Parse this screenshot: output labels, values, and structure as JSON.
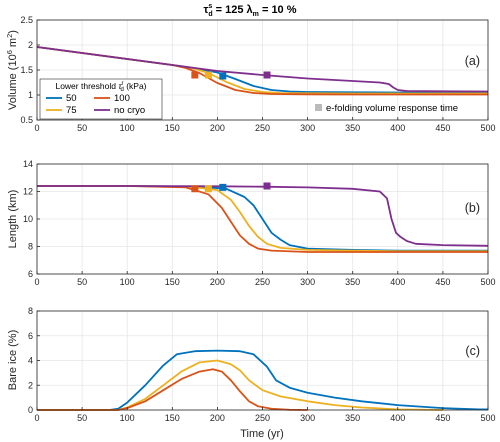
{
  "figure": {
    "title_main": "τ",
    "title_sub": "d",
    "title_sup": "s",
    "title_rest": " = 125  ",
    "title_lambda": "λ",
    "title_lambda_sub": "m",
    "title_lambda_rest": " = 10 %"
  },
  "legend": {
    "title_pre": "Lower threshold ",
    "title_tau": "τ",
    "title_tau_sup": "r",
    "title_tau_sub": "d",
    "title_post": " (kPa)",
    "items": [
      "50",
      "75",
      "100",
      "no cryo"
    ],
    "efold_label": "e-folding volume response time"
  },
  "colors": {
    "s50": "#0072bd",
    "s75": "#edb120",
    "s100": "#d95319",
    "nocryo": "#7e2f8e",
    "efold_marker": "#bbbbbb"
  },
  "chart_data": [
    {
      "type": "line",
      "panel_label": "(a)",
      "ylabel_pre": "Volume (10",
      "ylabel_sup1": "6",
      "ylabel_mid": " m",
      "ylabel_sup2": "2",
      "ylabel_post": ")",
      "xlim": [
        0,
        500
      ],
      "ylim": [
        0.5,
        2.5
      ],
      "yticks": [
        "0.5",
        "1",
        "1.5",
        "2",
        "2.5"
      ],
      "ytick_values": [
        0.5,
        1,
        1.5,
        2,
        2.5
      ],
      "xticks": [
        "0",
        "50",
        "100",
        "150",
        "200",
        "250",
        "300",
        "350",
        "400",
        "450",
        "500"
      ],
      "xtick_values": [
        0,
        50,
        100,
        150,
        200,
        250,
        300,
        350,
        400,
        450,
        500
      ],
      "series": [
        {
          "key": "s50",
          "x": [
            0,
            50,
            100,
            150,
            180,
            200,
            220,
            240,
            260,
            280,
            300,
            350,
            400,
            450,
            500
          ],
          "y": [
            1.96,
            1.84,
            1.72,
            1.6,
            1.52,
            1.45,
            1.32,
            1.18,
            1.1,
            1.07,
            1.06,
            1.055,
            1.05,
            1.05,
            1.05
          ]
        },
        {
          "key": "s75",
          "x": [
            0,
            50,
            100,
            150,
            170,
            190,
            210,
            230,
            250,
            270,
            300,
            350,
            400,
            450,
            500
          ],
          "y": [
            1.96,
            1.84,
            1.72,
            1.6,
            1.55,
            1.44,
            1.26,
            1.12,
            1.06,
            1.04,
            1.035,
            1.03,
            1.03,
            1.03,
            1.03
          ]
        },
        {
          "key": "s100",
          "x": [
            0,
            50,
            100,
            150,
            165,
            180,
            200,
            220,
            240,
            260,
            300,
            350,
            400,
            450,
            500
          ],
          "y": [
            1.96,
            1.84,
            1.72,
            1.6,
            1.54,
            1.44,
            1.24,
            1.1,
            1.04,
            1.02,
            1.015,
            1.01,
            1.01,
            1.01,
            1.01
          ]
        },
        {
          "key": "nocryo",
          "x": [
            0,
            50,
            100,
            150,
            200,
            250,
            300,
            350,
            380,
            390,
            395,
            400,
            410,
            450,
            500
          ],
          "y": [
            1.96,
            1.84,
            1.72,
            1.6,
            1.48,
            1.4,
            1.33,
            1.28,
            1.25,
            1.22,
            1.15,
            1.1,
            1.08,
            1.075,
            1.07
          ]
        }
      ],
      "markers": [
        {
          "key": "s100",
          "x": 175,
          "y": 1.4
        },
        {
          "key": "s75",
          "x": 190,
          "y": 1.4
        },
        {
          "key": "s50",
          "x": 206,
          "y": 1.38
        },
        {
          "key": "nocryo",
          "x": 255,
          "y": 1.4
        }
      ]
    },
    {
      "type": "line",
      "panel_label": "(b)",
      "ylabel": "Length (km)",
      "xlim": [
        0,
        500
      ],
      "ylim": [
        6,
        14
      ],
      "yticks": [
        "6",
        "8",
        "10",
        "12",
        "14"
      ],
      "ytick_values": [
        6,
        8,
        10,
        12,
        14
      ],
      "xticks": [
        "0",
        "50",
        "100",
        "150",
        "200",
        "250",
        "300",
        "350",
        "400",
        "450",
        "500"
      ],
      "xtick_values": [
        0,
        50,
        100,
        150,
        200,
        250,
        300,
        350,
        400,
        450,
        500
      ],
      "series": [
        {
          "key": "s50",
          "x": [
            0,
            100,
            180,
            210,
            230,
            240,
            250,
            260,
            270,
            280,
            300,
            350,
            400,
            450,
            500
          ],
          "y": [
            12.4,
            12.4,
            12.35,
            12.2,
            11.6,
            11.0,
            10.0,
            9.0,
            8.5,
            8.1,
            7.85,
            7.75,
            7.7,
            7.7,
            7.7
          ]
        },
        {
          "key": "s75",
          "x": [
            0,
            100,
            170,
            200,
            215,
            225,
            235,
            245,
            255,
            270,
            300,
            350,
            400,
            450,
            500
          ],
          "y": [
            12.4,
            12.4,
            12.35,
            12.1,
            11.4,
            10.5,
            9.5,
            8.7,
            8.2,
            7.9,
            7.75,
            7.7,
            7.65,
            7.65,
            7.65
          ]
        },
        {
          "key": "s100",
          "x": [
            0,
            100,
            165,
            190,
            205,
            215,
            225,
            235,
            245,
            260,
            300,
            350,
            400,
            450,
            500
          ],
          "y": [
            12.4,
            12.4,
            12.3,
            11.8,
            10.8,
            9.8,
            8.8,
            8.2,
            7.85,
            7.7,
            7.6,
            7.6,
            7.6,
            7.6,
            7.6
          ]
        },
        {
          "key": "nocryo",
          "x": [
            0,
            100,
            200,
            250,
            300,
            350,
            380,
            388,
            393,
            398,
            403,
            410,
            420,
            450,
            500
          ],
          "y": [
            12.4,
            12.4,
            12.38,
            12.35,
            12.3,
            12.2,
            12.0,
            11.5,
            10.0,
            9.0,
            8.7,
            8.4,
            8.2,
            8.1,
            8.05
          ]
        }
      ],
      "markers": [
        {
          "key": "s100",
          "x": 175,
          "y": 12.2
        },
        {
          "key": "s75",
          "x": 190,
          "y": 12.2
        },
        {
          "key": "s50",
          "x": 206,
          "y": 12.3
        },
        {
          "key": "nocryo",
          "x": 255,
          "y": 12.4
        }
      ]
    },
    {
      "type": "line",
      "panel_label": "(c)",
      "ylabel": "Bare ice (%)",
      "xlabel": "Time (yr)",
      "xlim": [
        0,
        500
      ],
      "ylim": [
        0,
        8
      ],
      "yticks": [
        "0",
        "2",
        "4",
        "6",
        "8"
      ],
      "ytick_values": [
        0,
        2,
        4,
        6,
        8
      ],
      "xticks": [
        "0",
        "50",
        "100",
        "150",
        "200",
        "250",
        "300",
        "350",
        "400",
        "450",
        "500"
      ],
      "xtick_values": [
        0,
        50,
        100,
        150,
        200,
        250,
        300,
        350,
        400,
        450,
        500
      ],
      "series": [
        {
          "key": "s50",
          "x": [
            0,
            80,
            90,
            100,
            120,
            140,
            155,
            175,
            200,
            225,
            240,
            255,
            265,
            280,
            300,
            330,
            360,
            400,
            450,
            490,
            500
          ],
          "y": [
            0,
            0,
            0.1,
            0.6,
            2.0,
            3.6,
            4.5,
            4.75,
            4.8,
            4.75,
            4.5,
            3.5,
            2.4,
            1.8,
            1.4,
            1.0,
            0.7,
            0.4,
            0.15,
            0.05,
            0.05
          ]
        },
        {
          "key": "s75",
          "x": [
            0,
            90,
            100,
            120,
            140,
            160,
            180,
            200,
            215,
            225,
            235,
            250,
            270,
            300,
            330,
            360,
            400,
            450
          ],
          "y": [
            0,
            0,
            0.2,
            0.9,
            2.0,
            3.1,
            3.85,
            4.0,
            3.7,
            3.2,
            2.4,
            1.6,
            1.1,
            0.7,
            0.4,
            0.2,
            0.05,
            0
          ]
        },
        {
          "key": "s100",
          "x": [
            0,
            90,
            100,
            120,
            140,
            160,
            180,
            195,
            205,
            215,
            225,
            235,
            245,
            260,
            280,
            300
          ],
          "y": [
            0,
            0,
            0.15,
            0.7,
            1.6,
            2.5,
            3.1,
            3.3,
            3.1,
            2.4,
            1.5,
            0.7,
            0.3,
            0.1,
            0.02,
            0
          ]
        }
      ]
    }
  ]
}
